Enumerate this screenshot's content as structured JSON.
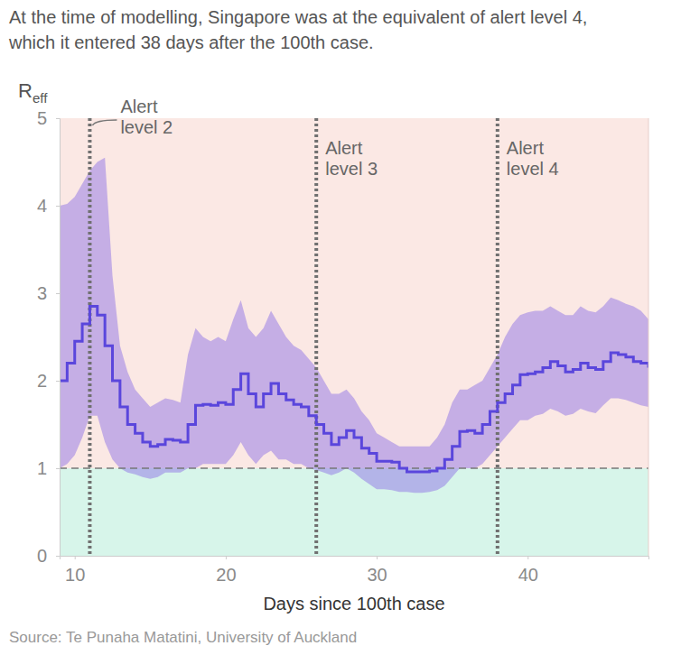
{
  "chart_data": {
    "type": "line",
    "title": "At the time of modelling, Singapore was at the equivalent of alert level 4, which it entered 38 days after the 100th case.",
    "ylabel": "Reff",
    "xlabel": "Days since 100th case",
    "source": "Source: Te Punaha Matatini, University of Auckland",
    "xlim": [
      9,
      48
    ],
    "xticks": [
      10,
      20,
      30,
      40
    ],
    "ylim": [
      0,
      5
    ],
    "yticks": [
      0,
      1,
      2,
      3,
      4,
      5
    ],
    "reference_lines": [
      {
        "y": 1
      }
    ],
    "annotations": [
      {
        "x": 11,
        "text": "Alert level 2"
      },
      {
        "x": 26,
        "text": "Alert level 3"
      },
      {
        "x": 38,
        "text": "Alert level 4"
      }
    ],
    "x": [
      9,
      9.5,
      10,
      10.5,
      11,
      11.5,
      12,
      12.5,
      13,
      13.5,
      14,
      14.5,
      15,
      15.5,
      16,
      16.5,
      17,
      17.5,
      18,
      18.5,
      19,
      19.5,
      20,
      20.5,
      21,
      21.5,
      22,
      22.5,
      23,
      23.5,
      24,
      24.5,
      25,
      25.5,
      26,
      26.5,
      27,
      27.5,
      28,
      28.5,
      29,
      29.5,
      30,
      30.5,
      31,
      31.5,
      32,
      32.5,
      33,
      33.5,
      34,
      34.5,
      35,
      35.5,
      36,
      36.5,
      37,
      37.5,
      38,
      38.5,
      39,
      39.5,
      40,
      40.5,
      41,
      41.5,
      42,
      42.5,
      43,
      43.5,
      44,
      44.5,
      45,
      45.5,
      46,
      46.5,
      47,
      47.5,
      48
    ],
    "series": [
      {
        "color": "#5a46dc",
        "values": [
          2.0,
          2.2,
          2.45,
          2.65,
          2.85,
          2.75,
          2.4,
          2.0,
          1.7,
          1.5,
          1.4,
          1.3,
          1.25,
          1.27,
          1.33,
          1.32,
          1.3,
          1.5,
          1.72,
          1.73,
          1.72,
          1.75,
          1.73,
          1.9,
          2.08,
          1.85,
          1.7,
          1.85,
          1.97,
          1.85,
          1.78,
          1.73,
          1.7,
          1.6,
          1.5,
          1.4,
          1.27,
          1.35,
          1.43,
          1.35,
          1.23,
          1.17,
          1.08,
          1.08,
          1.07,
          1.0,
          0.96,
          0.96,
          0.96,
          0.97,
          1.0,
          1.1,
          1.25,
          1.42,
          1.43,
          1.4,
          1.5,
          1.65,
          1.75,
          1.85,
          1.95,
          2.07,
          2.08,
          2.1,
          2.15,
          2.22,
          2.17,
          2.1,
          2.13,
          2.2,
          2.15,
          2.13,
          2.22,
          2.32,
          2.3,
          2.27,
          2.22,
          2.2,
          2.15
        ],
        "lower": [
          1.0,
          1.05,
          1.15,
          1.35,
          1.6,
          1.6,
          1.3,
          1.1,
          1.0,
          0.95,
          0.93,
          0.9,
          0.88,
          0.9,
          0.95,
          0.95,
          0.95,
          1.0,
          1.0,
          1.05,
          1.05,
          1.05,
          1.05,
          1.15,
          1.3,
          1.15,
          1.05,
          1.15,
          1.2,
          1.1,
          1.1,
          1.05,
          1.05,
          1.0,
          0.98,
          0.95,
          0.92,
          0.95,
          1.0,
          0.95,
          0.88,
          0.82,
          0.76,
          0.76,
          0.75,
          0.73,
          0.73,
          0.72,
          0.72,
          0.73,
          0.75,
          0.8,
          0.9,
          1.0,
          1.0,
          1.0,
          1.05,
          1.15,
          1.25,
          1.35,
          1.45,
          1.55,
          1.55,
          1.6,
          1.62,
          1.68,
          1.65,
          1.6,
          1.62,
          1.68,
          1.65,
          1.63,
          1.72,
          1.8,
          1.8,
          1.78,
          1.75,
          1.72,
          1.7
        ],
        "upper": [
          4.0,
          4.02,
          4.1,
          4.25,
          4.4,
          4.5,
          4.55,
          3.2,
          2.4,
          2.1,
          1.9,
          1.8,
          1.7,
          1.75,
          1.8,
          1.78,
          1.75,
          2.3,
          2.6,
          2.5,
          2.45,
          2.5,
          2.45,
          2.7,
          2.92,
          2.6,
          2.5,
          2.6,
          2.8,
          2.65,
          2.5,
          2.4,
          2.35,
          2.25,
          2.15,
          2.0,
          1.85,
          1.85,
          1.9,
          1.8,
          1.65,
          1.55,
          1.4,
          1.35,
          1.3,
          1.25,
          1.25,
          1.25,
          1.25,
          1.25,
          1.35,
          1.5,
          1.75,
          1.9,
          1.9,
          1.95,
          2.0,
          2.15,
          2.3,
          2.5,
          2.65,
          2.75,
          2.78,
          2.8,
          2.8,
          2.85,
          2.8,
          2.75,
          2.75,
          2.85,
          2.8,
          2.78,
          2.85,
          2.95,
          2.92,
          2.88,
          2.85,
          2.8,
          2.7
        ]
      }
    ]
  }
}
